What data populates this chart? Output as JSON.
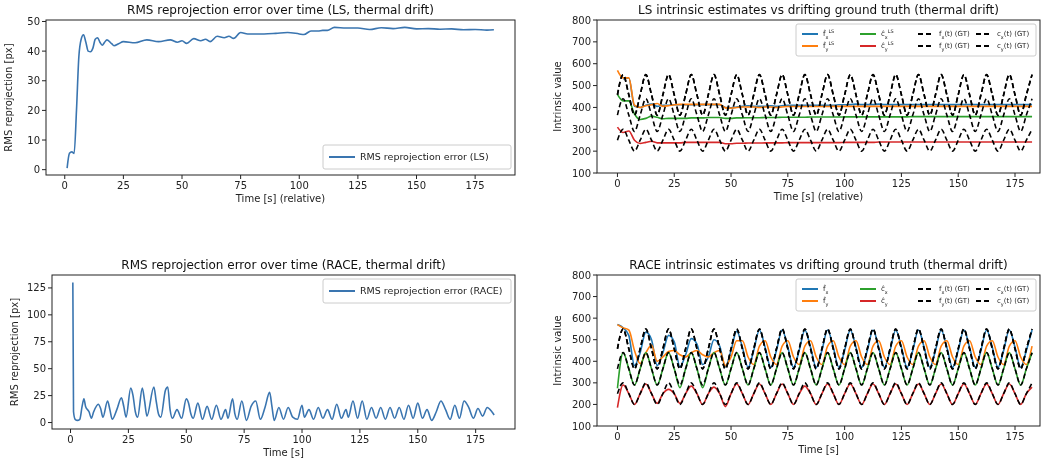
{
  "chart_data": [
    {
      "type": "line",
      "title": "RMS reprojection error over time (LS, thermal drift)",
      "xlabel": "Time [s] (relative)",
      "ylabel": "RMS reprojection [px]",
      "xlim": [
        -8,
        192
      ],
      "ylim": [
        -1.8,
        50.5
      ],
      "xticks": [
        0,
        25,
        50,
        75,
        100,
        125,
        150,
        175
      ],
      "yticks": [
        0,
        10,
        20,
        30,
        40,
        50
      ],
      "legend": "bottom right",
      "grid": false,
      "series": [
        {
          "name": "RMS reprojection error (LS)",
          "color": "#3a75b0",
          "x": [
            1,
            2,
            3,
            4,
            5,
            6,
            7,
            8,
            9,
            10,
            11,
            12,
            13,
            14,
            15,
            16,
            17,
            18,
            20,
            21,
            23,
            25,
            30,
            35,
            40,
            45,
            48,
            50,
            52,
            55,
            58,
            60,
            62,
            65,
            68,
            70,
            72,
            75,
            78,
            80,
            85,
            90,
            95,
            100,
            102,
            105,
            108,
            110,
            112,
            115,
            120,
            125,
            130,
            135,
            140,
            145,
            150,
            155,
            160,
            165,
            170,
            175,
            180,
            183
          ],
          "values": [
            0.5,
            5.5,
            6,
            5.5,
            20,
            38,
            44,
            45.5,
            43,
            40,
            39.8,
            41,
            44,
            44.5,
            43,
            42,
            43,
            43.8,
            42.5,
            41.8,
            42.5,
            43.2,
            42.8,
            43.8,
            43.2,
            43.8,
            43,
            43.5,
            42.6,
            44.2,
            43.5,
            44,
            43.2,
            45,
            44.5,
            45,
            44.3,
            46.3,
            45.8,
            45.8,
            45.8,
            46,
            46.3,
            45.8,
            45.6,
            46.8,
            46.8,
            47,
            47,
            48,
            47.8,
            47.8,
            47.3,
            47.9,
            47.6,
            48,
            47.5,
            47.6,
            47.4,
            47.5,
            47.2,
            47.3,
            47.1,
            47.2
          ]
        }
      ]
    },
    {
      "type": "line",
      "title": "LS intrinsic estimates vs drifting ground truth (thermal drift)",
      "xlabel": "Time [s] (relative)",
      "ylabel": "Intrinsic value",
      "xlim": [
        -9,
        186
      ],
      "ylim": [
        100,
        800
      ],
      "xticks": [
        0,
        25,
        50,
        75,
        100,
        125,
        150,
        175
      ],
      "yticks": [
        100,
        200,
        300,
        400,
        500,
        600,
        700,
        800
      ],
      "legend": "top right",
      "grid": false,
      "x": [
        0,
        2.5,
        5,
        7.5,
        10,
        12.5,
        15,
        17.5,
        20,
        22.5,
        25,
        27.5,
        30,
        32.5,
        35,
        37.5,
        40,
        42.5,
        45,
        47.5,
        50,
        52.5,
        55,
        57.5,
        60,
        62.5,
        65,
        67.5,
        70,
        72.5,
        75,
        77.5,
        80,
        82.5,
        85,
        87.5,
        90,
        92.5,
        95,
        97.5,
        100,
        102.5,
        105,
        107.5,
        110,
        112.5,
        115,
        117.5,
        120,
        122.5,
        125,
        127.5,
        130,
        132.5,
        135,
        137.5,
        140,
        142.5,
        145,
        147.5,
        150,
        152.5,
        155,
        157.5,
        160,
        162.5,
        165,
        167.5,
        170,
        172.5,
        175,
        177.5,
        180,
        182.5
      ],
      "series": [
        {
          "name": "f̂$_{x}$$^{LS}$",
          "color": "#1f77b4",
          "values": [
            null,
            530,
            535,
            405,
            400,
            410,
            415,
            405,
            410,
            410,
            412,
            412,
            412,
            412,
            413,
            413,
            413,
            413,
            413,
            400,
            398,
            402,
            405,
            408,
            405,
            405,
            405,
            408,
            405,
            408,
            410,
            410,
            410,
            410,
            410,
            410,
            410,
            410,
            410,
            412,
            412,
            413,
            415,
            413,
            413,
            413,
            415,
            413,
            413,
            413,
            413,
            413,
            413,
            413,
            413,
            413,
            413,
            413,
            413,
            413,
            413,
            413,
            413,
            413,
            413,
            413,
            413,
            413,
            413,
            413,
            413,
            413,
            413,
            413
          ]
        },
        {
          "name": "f̂$_{y}$$^{LS}$",
          "color": "#ff7f0e",
          "values": [
            570,
            535,
            535,
            410,
            400,
            408,
            412,
            418,
            405,
            408,
            412,
            414,
            414,
            414,
            414,
            414,
            414,
            414,
            414,
            398,
            396,
            400,
            402,
            402,
            402,
            400,
            402,
            402,
            400,
            402,
            404,
            404,
            404,
            404,
            404,
            404,
            404,
            404,
            405,
            405,
            405,
            405,
            405,
            405,
            405,
            405,
            405,
            405,
            405,
            405,
            405,
            405,
            405,
            405,
            405,
            405,
            405,
            405,
            405,
            405,
            405,
            405,
            405,
            405,
            405,
            405,
            405,
            405,
            405,
            405,
            405,
            405,
            405,
            405
          ]
        },
        {
          "name": "ĉ$_{x}$$^{LS}$",
          "color": "#2ca02c",
          "values": [
            460,
            430,
            430,
            370,
            345,
            350,
            360,
            355,
            348,
            350,
            350,
            350,
            350,
            352,
            352,
            352,
            354,
            354,
            354,
            350,
            350,
            352,
            352,
            353,
            353,
            353,
            354,
            354,
            354,
            355,
            355,
            355,
            355,
            355,
            356,
            356,
            356,
            356,
            356,
            356,
            357,
            357,
            357,
            357,
            357,
            357,
            357,
            357,
            357,
            357,
            357,
            357,
            358,
            358,
            358,
            358,
            358,
            358,
            358,
            358,
            358,
            358,
            358,
            358,
            358,
            358,
            358,
            358,
            358,
            358,
            358,
            358,
            358,
            358
          ]
        },
        {
          "name": "ĉ$_{y}$$^{LS}$",
          "color": "#d62728",
          "values": [
            310,
            285,
            292,
            250,
            235,
            240,
            245,
            238,
            238,
            238,
            238,
            238,
            240,
            240,
            240,
            240,
            240,
            240,
            240,
            234,
            234,
            236,
            236,
            237,
            237,
            237,
            238,
            238,
            238,
            238,
            239,
            239,
            239,
            239,
            239,
            239,
            239,
            239,
            239,
            239,
            240,
            240,
            240,
            240,
            240,
            240,
            242,
            242,
            242,
            242,
            242,
            242,
            242,
            242,
            242,
            242,
            242,
            242,
            242,
            242,
            242,
            242,
            242,
            242,
            242,
            242,
            242,
            242,
            242,
            242,
            242,
            242,
            242,
            242
          ]
        },
        {
          "name": "f$_{x}$(t) (GT)",
          "color": "#000000",
          "line_style": "dashed",
          "values": [
            458,
            550,
            458,
            365,
            458,
            550,
            458,
            365,
            458,
            550,
            458,
            365,
            458,
            550,
            458,
            365,
            458,
            550,
            458,
            365,
            458,
            550,
            458,
            365,
            458,
            550,
            458,
            365,
            458,
            550,
            458,
            365,
            458,
            550,
            458,
            365,
            458,
            550,
            458,
            365,
            458,
            550,
            458,
            365,
            458,
            550,
            458,
            365,
            458,
            550,
            458,
            365,
            458,
            550,
            458,
            365,
            458,
            550,
            458,
            365,
            458,
            550,
            458,
            365,
            458,
            550,
            458,
            365,
            458,
            550,
            458,
            365,
            458,
            550
          ]
        },
        {
          "name": "f$_{y}$(t) (GT)",
          "color": "#000000",
          "line_style": "dashed",
          "values": [
            458,
            550,
            458,
            365,
            458,
            550,
            458,
            365,
            458,
            550,
            458,
            365,
            458,
            550,
            458,
            365,
            458,
            550,
            458,
            365,
            458,
            550,
            458,
            365,
            458,
            550,
            458,
            365,
            458,
            550,
            458,
            365,
            458,
            550,
            458,
            365,
            458,
            550,
            458,
            365,
            458,
            550,
            458,
            365,
            458,
            550,
            458,
            365,
            458,
            550,
            458,
            365,
            458,
            550,
            458,
            365,
            458,
            550,
            458,
            365,
            458,
            550,
            458,
            365,
            458,
            550,
            458,
            365,
            458,
            550,
            458,
            365,
            458,
            550
          ]
        },
        {
          "name": "c$_{x}$(t) (GT)",
          "color": "#000000",
          "line_style": "dashed",
          "values": [
            365,
            440,
            365,
            290,
            365,
            440,
            365,
            290,
            365,
            440,
            365,
            290,
            365,
            440,
            365,
            290,
            365,
            440,
            365,
            290,
            365,
            440,
            365,
            290,
            365,
            440,
            365,
            290,
            365,
            440,
            365,
            290,
            365,
            440,
            365,
            290,
            365,
            440,
            365,
            290,
            365,
            440,
            365,
            290,
            365,
            440,
            365,
            290,
            365,
            440,
            365,
            290,
            365,
            440,
            365,
            290,
            365,
            440,
            365,
            290,
            365,
            440,
            365,
            290,
            365,
            440,
            365,
            290,
            365,
            440,
            365,
            290,
            365,
            440
          ]
        },
        {
          "name": "c$_{y}$(t) (GT)",
          "color": "#000000",
          "line_style": "dashed",
          "values": [
            250,
            300,
            250,
            200,
            250,
            300,
            250,
            200,
            250,
            300,
            250,
            200,
            250,
            300,
            250,
            200,
            250,
            300,
            250,
            200,
            250,
            300,
            250,
            200,
            250,
            300,
            250,
            200,
            250,
            300,
            250,
            200,
            250,
            300,
            250,
            200,
            250,
            300,
            250,
            200,
            250,
            300,
            250,
            200,
            250,
            300,
            250,
            200,
            250,
            300,
            250,
            200,
            250,
            300,
            250,
            200,
            250,
            300,
            250,
            200,
            250,
            300,
            250,
            200,
            250,
            300,
            250,
            200,
            250,
            300,
            250,
            200,
            250,
            300
          ]
        }
      ]
    },
    {
      "type": "line",
      "title": "RMS reprojection error over time (RACE, thermal drift)",
      "xlabel": "Time [s]",
      "ylabel": "RMS reprojection [px]",
      "xlim": [
        -8,
        192
      ],
      "ylim": [
        -6,
        137
      ],
      "xticks": [
        0,
        25,
        50,
        75,
        100,
        125,
        150,
        175
      ],
      "yticks": [
        0,
        25,
        50,
        75,
        100,
        125
      ],
      "legend": "top right",
      "grid": false,
      "series": [
        {
          "name": "RMS reprojection error (RACE)",
          "color": "#3a75b0",
          "x": [
            1,
            1.3,
            2,
            3,
            4,
            5,
            5.8,
            6.5,
            8,
            9,
            10,
            12,
            13,
            14,
            16,
            17,
            18,
            20,
            22,
            23,
            24,
            26,
            27,
            28,
            29,
            31,
            32,
            33,
            36,
            37,
            38,
            39,
            41,
            42,
            43,
            44,
            46,
            48,
            50,
            51,
            52,
            53,
            55,
            57,
            59,
            61,
            63,
            65,
            67,
            68,
            70,
            71,
            72,
            74,
            76,
            78,
            80,
            82,
            84,
            86,
            87,
            88,
            90,
            92,
            94,
            96,
            98,
            100,
            101,
            103,
            105,
            107,
            109,
            111,
            113,
            115,
            117,
            119,
            120,
            122,
            124,
            126,
            128,
            130,
            132,
            134,
            136,
            138,
            140,
            142,
            144,
            146,
            148,
            150,
            152,
            154,
            156,
            158,
            160,
            162,
            164,
            166,
            168,
            170,
            172,
            174,
            176,
            178,
            180,
            182,
            183
          ],
          "values": [
            130,
            10,
            3,
            2,
            3,
            15,
            22,
            15,
            10,
            4,
            10,
            17,
            13,
            5,
            20,
            12,
            3,
            12,
            23,
            15,
            5,
            32,
            25,
            10,
            5,
            32,
            20,
            6,
            33,
            20,
            8,
            5,
            30,
            33,
            12,
            4,
            12,
            4,
            22,
            18,
            8,
            4,
            18,
            3,
            15,
            3,
            16,
            3,
            12,
            4,
            22,
            8,
            3,
            20,
            2,
            15,
            20,
            3,
            14,
            28,
            15,
            2,
            14,
            3,
            14,
            5,
            3,
            16,
            5,
            12,
            3,
            14,
            4,
            12,
            3,
            17,
            4,
            12,
            5,
            20,
            4,
            20,
            3,
            14,
            4,
            14,
            3,
            14,
            4,
            14,
            3,
            16,
            4,
            18,
            4,
            12,
            2,
            10,
            20,
            12,
            3,
            16,
            4,
            20,
            14,
            4,
            13,
            6,
            14,
            10,
            7
          ]
        }
      ]
    },
    {
      "type": "line",
      "title": "RACE intrinsic estimates vs drifting ground truth (thermal drift)",
      "xlabel": "Time [s]",
      "ylabel": "Intrinsic value",
      "xlim": [
        -9,
        186
      ],
      "ylim": [
        100,
        800
      ],
      "xticks": [
        0,
        25,
        50,
        75,
        100,
        125,
        150,
        175
      ],
      "yticks": [
        100,
        200,
        300,
        400,
        500,
        600,
        700,
        800
      ],
      "legend": "top right",
      "grid": false,
      "x": [
        0,
        2.5,
        5,
        7.5,
        10,
        12.5,
        15,
        17.5,
        20,
        22.5,
        25,
        27.5,
        30,
        32.5,
        35,
        37.5,
        40,
        42.5,
        45,
        47.5,
        50,
        52.5,
        55,
        57.5,
        60,
        62.5,
        65,
        67.5,
        70,
        72.5,
        75,
        77.5,
        80,
        82.5,
        85,
        87.5,
        90,
        92.5,
        95,
        97.5,
        100,
        102.5,
        105,
        107.5,
        110,
        112.5,
        115,
        117.5,
        120,
        122.5,
        125,
        127.5,
        130,
        132.5,
        135,
        137.5,
        140,
        142.5,
        145,
        147.5,
        150,
        152.5,
        155,
        157.5,
        160,
        162.5,
        165,
        167.5,
        170,
        172.5,
        175,
        177.5,
        180,
        182.5
      ],
      "series": [
        {
          "name": "f̂$_{x}$",
          "color": "#1f77b4",
          "values": [
            570,
            555,
            520,
            380,
            440,
            535,
            500,
            380,
            440,
            520,
            490,
            375,
            430,
            505,
            480,
            385,
            420,
            500,
            470,
            375,
            450,
            540,
            465,
            372,
            450,
            545,
            465,
            372,
            450,
            545,
            465,
            372,
            450,
            545,
            465,
            372,
            450,
            545,
            465,
            372,
            450,
            545,
            465,
            372,
            450,
            545,
            465,
            372,
            450,
            545,
            465,
            372,
            450,
            545,
            465,
            372,
            450,
            545,
            465,
            372,
            450,
            545,
            465,
            372,
            450,
            545,
            465,
            372,
            450,
            545,
            465,
            372,
            450,
            545
          ]
        },
        {
          "name": "f̂$_{y}$",
          "color": "#ff7f0e",
          "values": [
            570,
            555,
            545,
            450,
            390,
            440,
            475,
            400,
            420,
            445,
            450,
            430,
            420,
            440,
            450,
            430,
            420,
            440,
            450,
            380,
            420,
            495,
            495,
            420,
            385,
            470,
            495,
            420,
            385,
            470,
            495,
            420,
            385,
            470,
            495,
            420,
            385,
            470,
            495,
            420,
            385,
            470,
            495,
            420,
            385,
            470,
            495,
            420,
            385,
            470,
            495,
            420,
            385,
            470,
            495,
            420,
            385,
            470,
            495,
            420,
            385,
            470,
            495,
            420,
            385,
            470,
            495,
            420,
            385,
            470,
            495,
            420,
            385,
            470
          ]
        },
        {
          "name": "ĉ$_{x}$",
          "color": "#2ca02c",
          "values": [
            275,
            440,
            365,
            290,
            365,
            440,
            365,
            290,
            365,
            440,
            365,
            278,
            365,
            440,
            365,
            278,
            365,
            440,
            365,
            290,
            365,
            440,
            365,
            290,
            365,
            440,
            365,
            290,
            365,
            440,
            365,
            290,
            365,
            440,
            365,
            290,
            365,
            440,
            365,
            290,
            365,
            440,
            365,
            290,
            365,
            440,
            365,
            290,
            365,
            440,
            365,
            290,
            365,
            440,
            365,
            290,
            365,
            440,
            365,
            290,
            365,
            440,
            365,
            290,
            365,
            440,
            365,
            290,
            365,
            440,
            365,
            290,
            365,
            440
          ]
        },
        {
          "name": "ĉ$_{y}$",
          "color": "#d62728",
          "values": [
            185,
            290,
            250,
            200,
            250,
            295,
            250,
            205,
            250,
            270,
            250,
            205,
            250,
            285,
            250,
            200,
            250,
            280,
            250,
            190,
            250,
            295,
            250,
            200,
            250,
            295,
            250,
            200,
            250,
            295,
            250,
            200,
            250,
            285,
            250,
            200,
            250,
            295,
            250,
            200,
            250,
            295,
            250,
            200,
            250,
            295,
            250,
            200,
            250,
            295,
            250,
            200,
            250,
            295,
            250,
            200,
            250,
            295,
            250,
            200,
            250,
            295,
            250,
            200,
            250,
            295,
            250,
            200,
            250,
            295,
            250,
            200,
            250,
            280
          ]
        },
        {
          "name": "f$_{x}$(t) (GT)",
          "color": "#000000",
          "line_style": "dashed",
          "values": [
            458,
            550,
            458,
            365,
            458,
            550,
            458,
            365,
            458,
            550,
            458,
            365,
            458,
            550,
            458,
            365,
            458,
            550,
            458,
            365,
            458,
            550,
            458,
            365,
            458,
            550,
            458,
            365,
            458,
            550,
            458,
            365,
            458,
            550,
            458,
            365,
            458,
            550,
            458,
            365,
            458,
            550,
            458,
            365,
            458,
            550,
            458,
            365,
            458,
            550,
            458,
            365,
            458,
            550,
            458,
            365,
            458,
            550,
            458,
            365,
            458,
            550,
            458,
            365,
            458,
            550,
            458,
            365,
            458,
            550,
            458,
            365,
            458,
            550
          ]
        },
        {
          "name": "f$_{y}$(t) (GT)",
          "color": "#000000",
          "line_style": "dashed",
          "values": [
            458,
            550,
            458,
            365,
            458,
            550,
            458,
            365,
            458,
            550,
            458,
            365,
            458,
            550,
            458,
            365,
            458,
            550,
            458,
            365,
            458,
            550,
            458,
            365,
            458,
            550,
            458,
            365,
            458,
            550,
            458,
            365,
            458,
            550,
            458,
            365,
            458,
            550,
            458,
            365,
            458,
            550,
            458,
            365,
            458,
            550,
            458,
            365,
            458,
            550,
            458,
            365,
            458,
            550,
            458,
            365,
            458,
            550,
            458,
            365,
            458,
            550,
            458,
            365,
            458,
            550,
            458,
            365,
            458,
            550,
            458,
            365,
            458,
            550
          ]
        },
        {
          "name": "c$_{x}$(t) (GT)",
          "color": "#000000",
          "line_style": "dashed",
          "values": [
            365,
            440,
            365,
            290,
            365,
            440,
            365,
            290,
            365,
            440,
            365,
            290,
            365,
            440,
            365,
            290,
            365,
            440,
            365,
            290,
            365,
            440,
            365,
            290,
            365,
            440,
            365,
            290,
            365,
            440,
            365,
            290,
            365,
            440,
            365,
            290,
            365,
            440,
            365,
            290,
            365,
            440,
            365,
            290,
            365,
            440,
            365,
            290,
            365,
            440,
            365,
            290,
            365,
            440,
            365,
            290,
            365,
            440,
            365,
            290,
            365,
            440,
            365,
            290,
            365,
            440,
            365,
            290,
            365,
            440,
            365,
            290,
            365,
            440
          ]
        },
        {
          "name": "c$_{y}$(t) (GT)",
          "color": "#000000",
          "line_style": "dashed",
          "values": [
            250,
            300,
            250,
            200,
            250,
            300,
            250,
            200,
            250,
            300,
            250,
            200,
            250,
            300,
            250,
            200,
            250,
            300,
            250,
            200,
            250,
            300,
            250,
            200,
            250,
            300,
            250,
            200,
            250,
            300,
            250,
            200,
            250,
            300,
            250,
            200,
            250,
            300,
            250,
            200,
            250,
            300,
            250,
            200,
            250,
            300,
            250,
            200,
            250,
            300,
            250,
            200,
            250,
            300,
            250,
            200,
            250,
            300,
            250,
            200,
            250,
            300,
            250,
            200,
            250,
            300,
            250,
            200,
            250,
            300,
            250,
            200,
            250,
            300
          ]
        }
      ]
    }
  ]
}
